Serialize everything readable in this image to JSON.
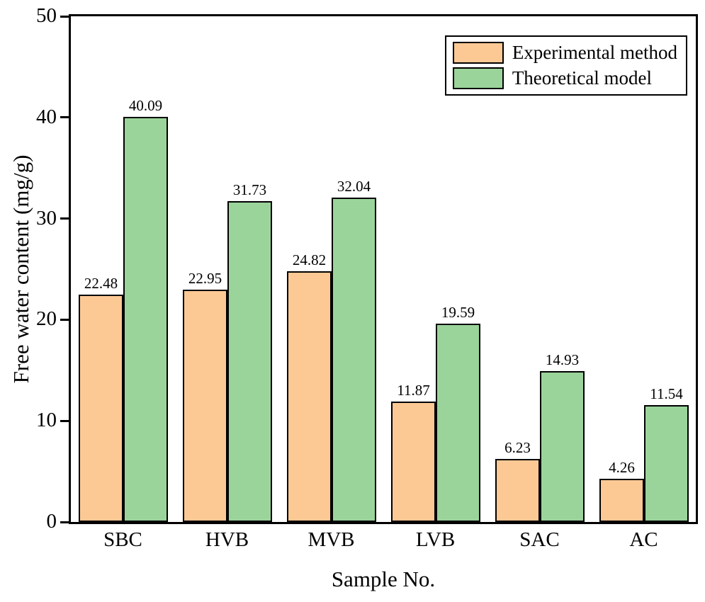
{
  "chart_data": {
    "type": "bar",
    "title": "",
    "xlabel": "Sample No.",
    "ylabel": "Free water content (mg/g)",
    "categories": [
      "SBC",
      "HVB",
      "MVB",
      "LVB",
      "SAC",
      "AC"
    ],
    "series": [
      {
        "name": "Experimental method",
        "color": "#FCC995",
        "values": [
          22.48,
          22.95,
          24.82,
          11.87,
          6.23,
          4.26
        ]
      },
      {
        "name": "Theoretical model",
        "color": "#9BD49B",
        "values": [
          40.09,
          31.73,
          32.04,
          19.59,
          14.93,
          11.54
        ]
      }
    ],
    "bar_labels": [
      [
        "22.48",
        "22.95",
        "24.82",
        "11.87",
        "6.23",
        "4.26"
      ],
      [
        "40.09",
        "31.73",
        "32.04",
        "19.59",
        "14.93",
        "11.54"
      ]
    ],
    "ylim": [
      0,
      50
    ],
    "yticks": [
      "0",
      "10",
      "20",
      "30",
      "40",
      "50"
    ],
    "grid": false,
    "legend_position": "top-right",
    "bar_border_color": "#000000",
    "frame_color": "#000000",
    "background_color": "#ffffff"
  }
}
